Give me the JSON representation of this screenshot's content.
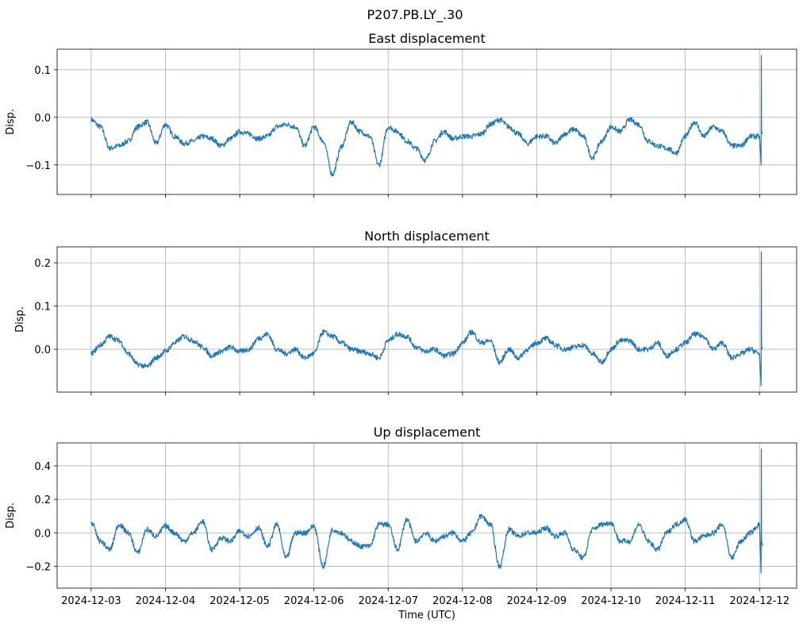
{
  "figure_title": "P207.PB.LY_.30",
  "chart_data": [
    {
      "type": "line",
      "title": "East displacement",
      "xlabel": "",
      "ylabel": "Disp.",
      "ylim": [
        -0.162,
        0.143
      ],
      "yticks": [
        0.1,
        0.0,
        -0.1
      ],
      "ytick_labels": [
        "0.1",
        "0.0",
        "−0.1"
      ],
      "grid": true,
      "color": "#1f77b4",
      "values": [
        -0.005,
        -0.02,
        -0.065,
        -0.06,
        -0.05,
        -0.02,
        -0.01,
        -0.055,
        -0.015,
        -0.04,
        -0.055,
        -0.05,
        -0.04,
        -0.045,
        -0.06,
        -0.045,
        -0.03,
        -0.035,
        -0.045,
        -0.04,
        -0.02,
        -0.015,
        -0.02,
        -0.06,
        -0.02,
        -0.05,
        -0.12,
        -0.06,
        -0.01,
        -0.03,
        -0.04,
        -0.1,
        -0.02,
        -0.03,
        -0.05,
        -0.065,
        -0.09,
        -0.05,
        -0.03,
        -0.045,
        -0.04,
        -0.04,
        -0.035,
        -0.015,
        -0.005,
        -0.02,
        -0.035,
        -0.055,
        -0.04,
        -0.04,
        -0.055,
        -0.035,
        -0.025,
        -0.04,
        -0.085,
        -0.05,
        -0.02,
        -0.03,
        -0.005,
        -0.015,
        -0.05,
        -0.06,
        -0.065,
        -0.075,
        -0.04,
        -0.01,
        -0.04,
        -0.02,
        -0.03,
        -0.06,
        -0.06,
        -0.04,
        -0.04,
        -0.1,
        0.13,
        -0.03,
        -0.035
      ]
    },
    {
      "type": "line",
      "title": "North displacement",
      "xlabel": "",
      "ylabel": "Disp.",
      "ylim": [
        -0.099,
        0.237
      ],
      "yticks": [
        0.2,
        0.1,
        0.0
      ],
      "ytick_labels": [
        "0.2",
        "0.1",
        "0.0"
      ],
      "grid": true,
      "color": "#1f77b4",
      "values": [
        -0.01,
        0.01,
        0.03,
        0.02,
        -0.01,
        -0.035,
        -0.04,
        -0.02,
        -0.005,
        0.015,
        0.03,
        0.02,
        0.005,
        -0.015,
        -0.005,
        0.005,
        -0.005,
        0.0,
        0.025,
        0.035,
        0.0,
        -0.01,
        0.0,
        -0.02,
        -0.01,
        0.04,
        0.03,
        0.015,
        0.0,
        -0.005,
        -0.01,
        -0.02,
        0.02,
        0.035,
        0.03,
        0.005,
        -0.005,
        0.0,
        -0.015,
        -0.01,
        0.015,
        0.04,
        0.015,
        0.02,
        -0.03,
        0.0,
        -0.02,
        0.0,
        0.015,
        0.025,
        0.01,
        0.0,
        0.005,
        0.01,
        -0.01,
        -0.03,
        0.0,
        0.02,
        0.02,
        0.0,
        0.0,
        0.015,
        -0.015,
        0.0,
        0.015,
        0.035,
        0.03,
        0.0,
        0.015,
        -0.02,
        -0.01,
        0.0,
        -0.01,
        -0.085,
        0.225,
        0.0,
        0.005
      ]
    },
    {
      "type": "line",
      "title": "Up displacement",
      "xlabel": "Time (UTC)",
      "ylabel": "Disp.",
      "ylim": [
        -0.33,
        0.537
      ],
      "yticks": [
        0.4,
        0.2,
        0.0,
        -0.2
      ],
      "ytick_labels": [
        "0.4",
        "0.2",
        "0.0",
        "−0.2"
      ],
      "grid": true,
      "color": "#1f77b4",
      "values": [
        0.06,
        -0.05,
        -0.1,
        0.05,
        0.0,
        -0.12,
        0.02,
        -0.02,
        0.04,
        0.0,
        -0.05,
        0.0,
        0.07,
        -0.1,
        -0.03,
        -0.05,
        0.01,
        -0.02,
        0.03,
        -0.08,
        0.05,
        -0.15,
        0.0,
        0.0,
        0.04,
        -0.2,
        0.02,
        0.0,
        -0.05,
        -0.08,
        -0.08,
        0.05,
        0.05,
        -0.1,
        0.08,
        -0.05,
        0.0,
        -0.05,
        -0.02,
        0.0,
        -0.05,
        0.0,
        0.1,
        0.05,
        -0.2,
        0.02,
        -0.02,
        0.0,
        0.0,
        0.03,
        -0.02,
        0.0,
        -0.1,
        -0.15,
        0.02,
        0.05,
        0.06,
        -0.05,
        -0.05,
        0.05,
        -0.05,
        -0.1,
        0.0,
        0.05,
        0.08,
        -0.05,
        -0.02,
        0.0,
        0.05,
        -0.15,
        -0.05,
        0.0,
        0.05,
        -0.24,
        0.5,
        -0.05,
        -0.08
      ]
    }
  ],
  "x": [
    "2024-12-03T00:00",
    "2024-12-03T03:00",
    "2024-12-03T06:00",
    "2024-12-03T09:00",
    "2024-12-03T12:00",
    "2024-12-03T15:00",
    "2024-12-03T18:00",
    "2024-12-03T21:00",
    "2024-12-04T00:00",
    "2024-12-04T03:00",
    "2024-12-04T06:00",
    "2024-12-04T09:00",
    "2024-12-04T12:00",
    "2024-12-04T15:00",
    "2024-12-04T18:00",
    "2024-12-04T21:00",
    "2024-12-05T00:00",
    "2024-12-05T03:00",
    "2024-12-05T06:00",
    "2024-12-05T09:00",
    "2024-12-05T12:00",
    "2024-12-05T15:00",
    "2024-12-05T18:00",
    "2024-12-05T21:00",
    "2024-12-06T00:00",
    "2024-12-06T03:00",
    "2024-12-06T06:00",
    "2024-12-06T09:00",
    "2024-12-06T12:00",
    "2024-12-06T15:00",
    "2024-12-06T18:00",
    "2024-12-06T21:00",
    "2024-12-07T00:00",
    "2024-12-07T03:00",
    "2024-12-07T06:00",
    "2024-12-07T09:00",
    "2024-12-07T12:00",
    "2024-12-07T15:00",
    "2024-12-07T18:00",
    "2024-12-07T21:00",
    "2024-12-08T00:00",
    "2024-12-08T03:00",
    "2024-12-08T06:00",
    "2024-12-08T09:00",
    "2024-12-08T12:00",
    "2024-12-08T15:00",
    "2024-12-08T18:00",
    "2024-12-08T21:00",
    "2024-12-09T00:00",
    "2024-12-09T03:00",
    "2024-12-09T06:00",
    "2024-12-09T09:00",
    "2024-12-09T12:00",
    "2024-12-09T15:00",
    "2024-12-09T18:00",
    "2024-12-09T21:00",
    "2024-12-10T00:00",
    "2024-12-10T03:00",
    "2024-12-10T06:00",
    "2024-12-10T09:00",
    "2024-12-10T12:00",
    "2024-12-10T15:00",
    "2024-12-10T18:00",
    "2024-12-10T21:00",
    "2024-12-11T00:00",
    "2024-12-11T03:00",
    "2024-12-11T06:00",
    "2024-12-11T09:00",
    "2024-12-11T12:00",
    "2024-12-11T15:00",
    "2024-12-11T18:00",
    "2024-12-11T21:00",
    "2024-12-12T00:00",
    "2024-12-12T00:30",
    "2024-12-12T00:35",
    "2024-12-12T00:40",
    "2024-12-12T01:00"
  ],
  "xlim": [
    "2024-12-02T13:00",
    "2024-12-12T12:00"
  ],
  "xtick_labels": [
    "2024-12-03",
    "2024-12-04",
    "2024-12-05",
    "2024-12-06",
    "2024-12-07",
    "2024-12-08",
    "2024-12-09",
    "2024-12-10",
    "2024-12-11",
    "2024-12-12"
  ]
}
